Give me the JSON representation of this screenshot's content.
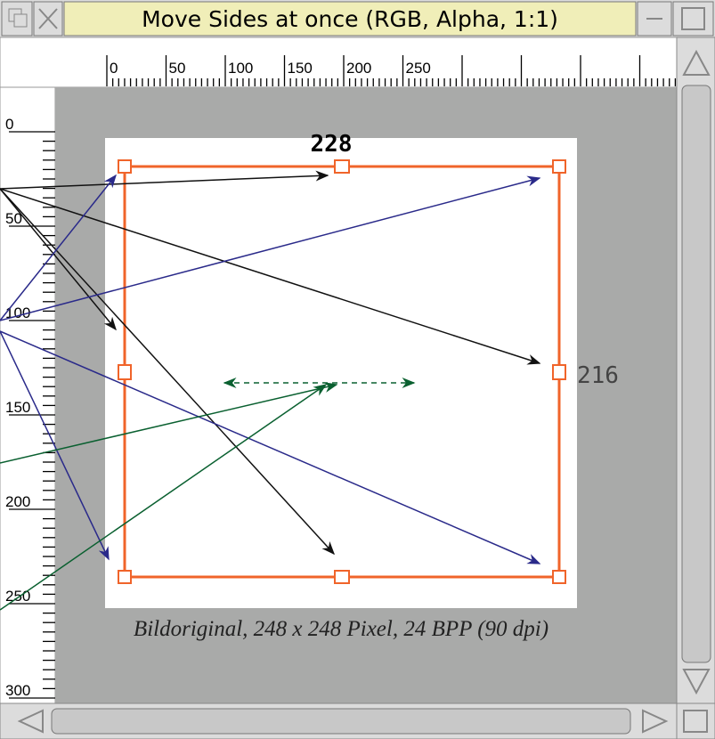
{
  "window": {
    "title": "Move Sides at once (RGB, Alpha, 1:1)",
    "ruler_top": [
      0,
      50,
      100,
      150,
      200,
      250
    ],
    "ruler_left": [
      0,
      50,
      100,
      150,
      200,
      250,
      300
    ],
    "label_top": "228",
    "label_right": "216",
    "caption": "Bildoriginal, 248 x 248 Pixel, 24 BPP (90 dpi)"
  }
}
